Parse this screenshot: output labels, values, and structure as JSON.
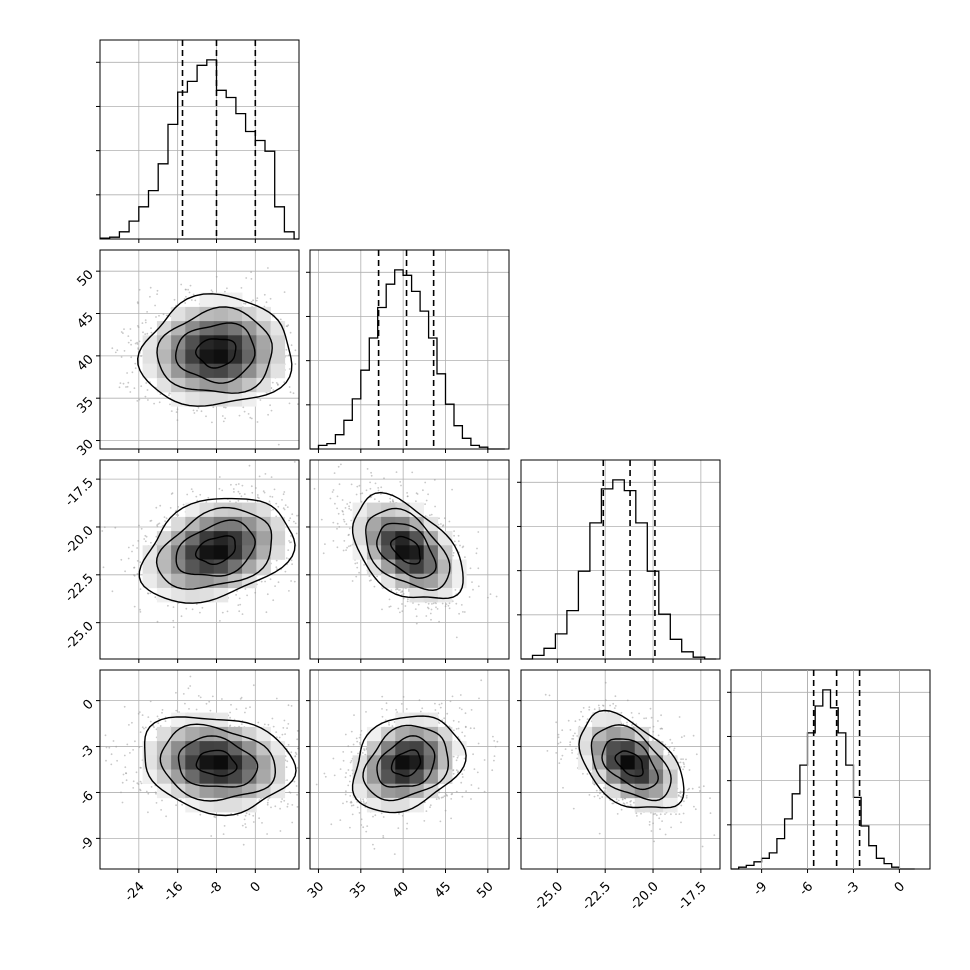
{
  "chart_data": {
    "type": "corner",
    "parameters": [
      {
        "range": [
          -32,
          9
        ],
        "ticks": [
          "-24",
          "-16",
          "-8",
          "0"
        ],
        "tick_values": [
          -24,
          -16,
          -8,
          0
        ]
      },
      {
        "range": [
          29,
          52.5
        ],
        "ticks": [
          "30",
          "35",
          "40",
          "45",
          "50"
        ],
        "tick_values": [
          30,
          35,
          40,
          45,
          50
        ]
      },
      {
        "range": [
          -26.9,
          -16.5
        ],
        "ticks": [
          "-25.0",
          "-22.5",
          "-20.0",
          "-17.5"
        ],
        "tick_values": [
          -25.0,
          -22.5,
          -20.0,
          -17.5
        ]
      },
      {
        "range": [
          -11,
          2
        ],
        "ticks": [
          "-9",
          "-6",
          "-3",
          "0"
        ],
        "tick_values": [
          -9,
          -6,
          -3,
          0
        ]
      }
    ],
    "histograms": [
      {
        "bin_edges": [
          -32,
          -30,
          -28,
          -26,
          -24,
          -22,
          -20,
          -18,
          -16,
          -14,
          -12,
          -10,
          -8,
          -6,
          -4,
          -2,
          0,
          2,
          4,
          6,
          8,
          9
        ],
        "counts": [
          0.005,
          0.01,
          0.04,
          0.1,
          0.18,
          0.27,
          0.42,
          0.64,
          0.82,
          0.88,
          0.97,
          1.0,
          0.83,
          0.79,
          0.7,
          0.6,
          0.55,
          0.49,
          0.18,
          0.04,
          0.0
        ],
        "quantiles": [
          -15,
          -8,
          0
        ]
      },
      {
        "bin_edges": [
          29,
          30,
          31,
          32,
          33,
          34,
          35,
          36,
          37,
          38,
          39,
          40,
          41,
          42,
          43,
          44,
          45,
          46,
          47,
          48,
          49,
          50,
          51,
          52
        ],
        "counts": [
          0.0,
          0.02,
          0.03,
          0.08,
          0.16,
          0.28,
          0.44,
          0.62,
          0.79,
          0.92,
          1.0,
          0.97,
          0.88,
          0.77,
          0.62,
          0.42,
          0.25,
          0.13,
          0.06,
          0.02,
          0.01,
          0.0,
          0.0
        ],
        "quantiles": [
          37.1,
          40.4,
          43.6
        ]
      },
      {
        "bin_edges": [
          -26.9,
          -26.3,
          -25.7,
          -25.1,
          -24.5,
          -23.9,
          -23.3,
          -22.7,
          -22.1,
          -21.5,
          -20.9,
          -20.3,
          -19.7,
          -19.1,
          -18.5,
          -17.9,
          -17.3,
          -16.7
        ],
        "counts": [
          0.0,
          0.02,
          0.06,
          0.14,
          0.27,
          0.49,
          0.76,
          0.95,
          1.0,
          0.94,
          0.76,
          0.49,
          0.25,
          0.11,
          0.04,
          0.01,
          0.0
        ],
        "quantiles": [
          -22.6,
          -21.2,
          -19.9
        ]
      },
      {
        "bin_edges": [
          -11,
          -10.5,
          -10,
          -9.5,
          -9,
          -8.5,
          -8,
          -7.5,
          -7,
          -6.5,
          -6,
          -5.5,
          -5,
          -4.5,
          -4,
          -3.5,
          -3,
          -2.5,
          -2,
          -1.5,
          -1,
          -0.5,
          0,
          0.5,
          1
        ],
        "counts": [
          0.0,
          0.01,
          0.02,
          0.04,
          0.06,
          0.09,
          0.17,
          0.28,
          0.42,
          0.58,
          0.76,
          0.91,
          1.0,
          0.9,
          0.76,
          0.58,
          0.4,
          0.24,
          0.13,
          0.06,
          0.03,
          0.01,
          0.0,
          0.0
        ],
        "quantiles": [
          -5.6,
          -4.1,
          -2.6
        ]
      }
    ],
    "pairs": [
      {
        "x_param": 0,
        "y_param": 1,
        "center": [
          -8,
          40.4
        ],
        "sigma": [
          7.4,
          3.1
        ],
        "rho": 0.05
      },
      {
        "x_param": 0,
        "y_param": 2,
        "center": [
          -8,
          -21.2
        ],
        "sigma": [
          7.4,
          1.3
        ],
        "rho": 0.3
      },
      {
        "x_param": 1,
        "y_param": 2,
        "center": [
          40.4,
          -21.2
        ],
        "sigma": [
          3.1,
          1.3
        ],
        "rho": -0.45
      },
      {
        "x_param": 0,
        "y_param": 3,
        "center": [
          -8,
          -4.1
        ],
        "sigma": [
          7.4,
          1.5
        ],
        "rho": -0.15
      },
      {
        "x_param": 1,
        "y_param": 3,
        "center": [
          40.4,
          -4.1
        ],
        "sigma": [
          3.1,
          1.5
        ],
        "rho": 0.25
      },
      {
        "x_param": 2,
        "y_param": 3,
        "center": [
          -21.2,
          -4.1
        ],
        "sigma": [
          1.3,
          1.5
        ],
        "rho": -0.45
      }
    ],
    "grid": true,
    "quantile_line_style": "dashed",
    "colors": {
      "line": "#000000",
      "scatter": "#9a9a9a",
      "grid": "#b0b0b0",
      "background": "#ffffff"
    }
  }
}
